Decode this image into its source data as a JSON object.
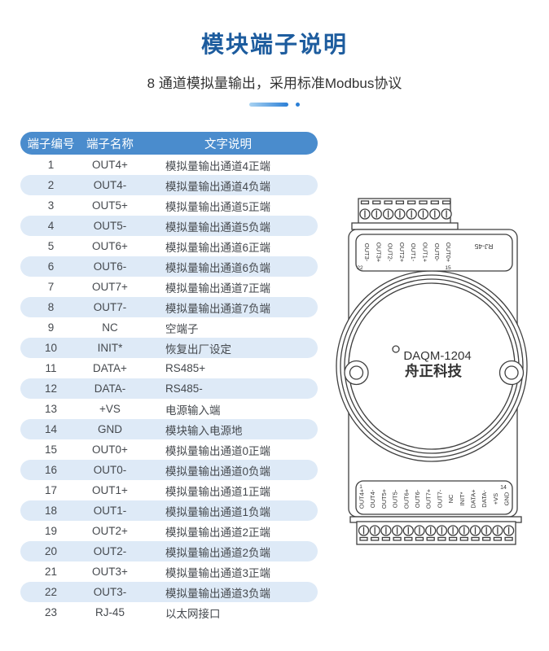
{
  "page": {
    "title": "模块端子说明",
    "subtitle": "8 通道模拟量输出，采用标准Modbus协议"
  },
  "colors": {
    "title_blue": "#1d5c9e",
    "table_header_bg": "#4a8ccd",
    "row_stripe_bg": "#deeaf7",
    "accent_blue": "#2b7fd6",
    "line_art": "#3f3f3f"
  },
  "table": {
    "headers": [
      "端子编号",
      "端子名称",
      "文字说明"
    ],
    "rows": [
      {
        "no": "1",
        "name": "OUT4+",
        "desc": "模拟量输出通道4正端"
      },
      {
        "no": "2",
        "name": "OUT4-",
        "desc": "模拟量输出通道4负端"
      },
      {
        "no": "3",
        "name": "OUT5+",
        "desc": "模拟量输出通道5正端"
      },
      {
        "no": "4",
        "name": "OUT5-",
        "desc": "模拟量输出通道5负端"
      },
      {
        "no": "5",
        "name": "OUT6+",
        "desc": "模拟量输出通道6正端"
      },
      {
        "no": "6",
        "name": "OUT6-",
        "desc": "模拟量输出通道6负端"
      },
      {
        "no": "7",
        "name": "OUT7+",
        "desc": "模拟量输出通道7正端"
      },
      {
        "no": "8",
        "name": "OUT7-",
        "desc": "模拟量输出通道7负端"
      },
      {
        "no": "9",
        "name": "NC",
        "desc": "空端子"
      },
      {
        "no": "10",
        "name": "INIT*",
        "desc": "恢复出厂设定"
      },
      {
        "no": "11",
        "name": "DATA+",
        "desc": "RS485+"
      },
      {
        "no": "12",
        "name": "DATA-",
        "desc": "RS485-"
      },
      {
        "no": "13",
        "name": "+VS",
        "desc": "电源输入端"
      },
      {
        "no": "14",
        "name": "GND",
        "desc": "模块输入电源地"
      },
      {
        "no": "15",
        "name": "OUT0+",
        "desc": "模拟量输出通道0正端"
      },
      {
        "no": "16",
        "name": "OUT0-",
        "desc": "模拟量输出通道0负端"
      },
      {
        "no": "17",
        "name": "OUT1+",
        "desc": "模拟量输出通道1正端"
      },
      {
        "no": "18",
        "name": "OUT1-",
        "desc": "模拟量输出通道1负端"
      },
      {
        "no": "19",
        "name": "OUT2+",
        "desc": "模拟量输出通道2正端"
      },
      {
        "no": "20",
        "name": "OUT2-",
        "desc": "模拟量输出通道2负端"
      },
      {
        "no": "21",
        "name": "OUT3+",
        "desc": "模拟量输出通道3正端"
      },
      {
        "no": "22",
        "name": "OUT3-",
        "desc": "模拟量输出通道3负端"
      },
      {
        "no": "23",
        "name": "RJ-45",
        "desc": "以太网接口"
      }
    ]
  },
  "device": {
    "model": "DAQM-1204",
    "brand": "舟正科技",
    "rj45_label": "RJ-45",
    "top_marker_left": "22",
    "top_marker_right": "15",
    "bottom_marker_left": "1",
    "bottom_marker_right": "14",
    "top_terminal_labels": [
      "OUT3-",
      "OUT3+",
      "OUT2-",
      "OUT2+",
      "OUT1-",
      "OUT1+",
      "OUT0-",
      "OUT0+"
    ],
    "bottom_terminal_labels": [
      "OUT4+",
      "OUT4-",
      "OUT5+",
      "OUT5-",
      "OUT6+",
      "OUT6-",
      "OUT7+",
      "OUT7-",
      "NC",
      "INIT*",
      "DATA+",
      "DATA-",
      "+VS",
      "GND"
    ]
  }
}
